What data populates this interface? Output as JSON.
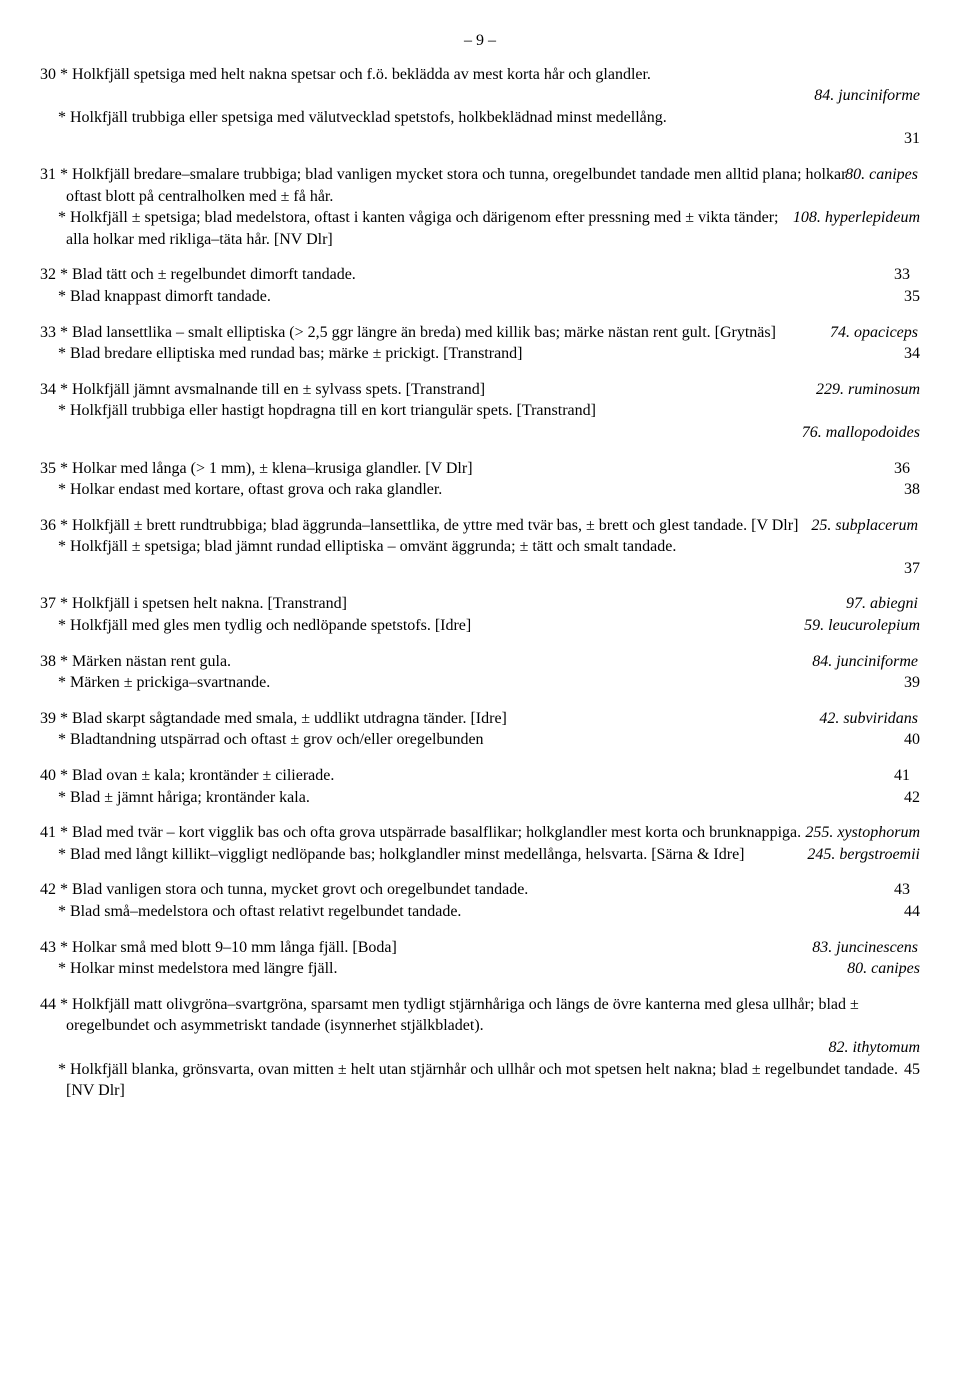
{
  "page_number": "– 9 –",
  "entries": [
    {
      "leads": [
        {
          "num": "30",
          "text": "* Holkfjäll spetsiga med helt nakna spetsar och f.ö. beklädda av mest korta hår och glandler.",
          "result": "",
          "result_italic": ""
        },
        {
          "num": "",
          "text": "",
          "result": "84",
          "result_italic": ". junciniforme"
        },
        {
          "num": "",
          "text": "* Holkfjäll trubbiga eller spetsiga med välutvecklad spetstofs, holkbeklädnad minst medellång.",
          "result": "",
          "result_italic": ""
        },
        {
          "num": "",
          "text": "",
          "result": "31",
          "result_italic": ""
        }
      ]
    },
    {
      "leads": [
        {
          "num": "31",
          "text": "* Holkfjäll bredare–smalare trubbiga; blad vanligen mycket stora och tunna, oregelbundet tandade men alltid plana; holkar oftast blott på centralholken med ± få hår.",
          "result": "80",
          "result_italic": ". canipes"
        },
        {
          "num": "",
          "text": "* Holkfjäll ± spetsiga; blad medelstora, oftast i kanten vågiga och därigenom efter pressning med ± vikta tänder; alla holkar med rikliga–täta hår. [NV Dlr]",
          "result": "108",
          "result_italic": ". hyperlepideum"
        }
      ]
    },
    {
      "leads": [
        {
          "num": "32",
          "text": "* Blad tätt och ± regelbundet dimorft tandade.",
          "result": "33",
          "result_italic": ""
        },
        {
          "num": "",
          "text": "* Blad knappast dimorft tandade.",
          "result": "35",
          "result_italic": ""
        }
      ]
    },
    {
      "leads": [
        {
          "num": "33",
          "text": "* Blad lansettlika – smalt elliptiska (> 2,5 ggr längre än breda) med killik bas; märke nästan rent gult. [Grytnäs]",
          "result": "74",
          "result_italic": ". opaciceps"
        },
        {
          "num": "",
          "text": "* Blad bredare elliptiska med rundad bas; märke ± prickigt. [Transtrand]",
          "result": "34",
          "result_italic": ""
        }
      ]
    },
    {
      "leads": [
        {
          "num": "34",
          "text": "* Holkfjäll jämnt avsmalnande till en ± sylvass spets. [Transtrand]",
          "result": "229",
          "result_italic": ". ruminosum"
        },
        {
          "num": "",
          "text": "* Holkfjäll trubbiga eller hastigt hopdragna till en kort triangulär spets. [Transtrand]",
          "result": "",
          "result_italic": ""
        },
        {
          "num": "",
          "text": "",
          "result": "76",
          "result_italic": ". mallopodoides"
        }
      ]
    },
    {
      "leads": [
        {
          "num": "35",
          "text": "* Holkar med långa (> 1 mm), ± klena–krusiga glandler. [V Dlr]",
          "result": "36",
          "result_italic": ""
        },
        {
          "num": "",
          "text": "* Holkar endast med kortare, oftast grova och raka glandler.",
          "result": "38",
          "result_italic": ""
        }
      ]
    },
    {
      "leads": [
        {
          "num": "36",
          "text": "* Holkfjäll ± brett rundtrubbiga; blad äggrunda–lansettlika, de yttre med tvär bas, ± brett och glest tandade. [V Dlr]",
          "result": "25",
          "result_italic": ". subplacerum"
        },
        {
          "num": "",
          "text": "* Holkfjäll ± spetsiga; blad jämnt rundad elliptiska – omvänt äggrunda; ± tätt och smalt tandade.",
          "result": "",
          "result_italic": ""
        },
        {
          "num": "",
          "text": "",
          "result": "37",
          "result_italic": ""
        }
      ]
    },
    {
      "leads": [
        {
          "num": "37",
          "text": "* Holkfjäll i spetsen helt nakna. [Transtrand]",
          "result": "97",
          "result_italic": ". abiegni"
        },
        {
          "num": "",
          "text": "* Holkfjäll med gles men tydlig och nedlöpande spetstofs. [Idre]",
          "result": "59",
          "result_italic": ". leucurolepium"
        }
      ]
    },
    {
      "leads": [
        {
          "num": "38",
          "text": "* Märken nästan rent gula.",
          "result": "84",
          "result_italic": ". junciniforme"
        },
        {
          "num": "",
          "text": "* Märken ± prickiga–svartnande.",
          "result": "39",
          "result_italic": ""
        }
      ]
    },
    {
      "leads": [
        {
          "num": "39",
          "text": "* Blad skarpt sågtandade med smala, ± uddlikt utdragna tänder. [Idre]",
          "result": "42",
          "result_italic": ". subviridans"
        },
        {
          "num": "",
          "text": "* Bladtandning utspärrad och oftast ± grov och/eller oregelbunden",
          "result": "40",
          "result_italic": ""
        }
      ]
    },
    {
      "leads": [
        {
          "num": "40",
          "text": "* Blad ovan ± kala; krontänder ± cilierade.",
          "result": "41",
          "result_italic": ""
        },
        {
          "num": "",
          "text": "* Blad ± jämnt håriga; krontänder kala.",
          "result": "42",
          "result_italic": ""
        }
      ]
    },
    {
      "leads": [
        {
          "num": "41",
          "text": "* Blad med tvär – kort vigglik bas och ofta grova utspärrade basalflikar; holkglandler mest korta och brunknappiga.",
          "result": "255",
          "result_italic": ". xystophorum"
        },
        {
          "num": "",
          "text": "* Blad med långt killikt–viggligt nedlöpande bas; holkglandler minst medellånga, helsvarta. [Särna & Idre]",
          "result": "245",
          "result_italic": ". bergstroemii"
        }
      ]
    },
    {
      "leads": [
        {
          "num": "42",
          "text": "* Blad vanligen stora och tunna, mycket grovt och oregelbundet tandade.",
          "result": "43",
          "result_italic": ""
        },
        {
          "num": "",
          "text": "* Blad små–medelstora och oftast relativt regelbundet tandade.",
          "result": "44",
          "result_italic": ""
        }
      ]
    },
    {
      "leads": [
        {
          "num": "43",
          "text": "* Holkar små med blott 9–10 mm långa fjäll. [Boda]",
          "result": "83",
          "result_italic": ". juncinescens"
        },
        {
          "num": "",
          "text": "* Holkar minst medelstora med längre fjäll.",
          "result": "80",
          "result_italic": ". canipes"
        }
      ]
    },
    {
      "leads": [
        {
          "num": "44",
          "text": "* Holkfjäll matt olivgröna–svartgröna, sparsamt men tydligt stjärnhåriga och längs de övre kanterna med glesa ullhår; blad ± oregelbundet och asymmetriskt tandade (isynnerhet stjälkbladet).",
          "result": "",
          "result_italic": ""
        },
        {
          "num": "",
          "text": "",
          "result": "82",
          "result_italic": ". ithytomum"
        },
        {
          "num": "",
          "text": "* Holkfjäll blanka, grönsvarta, ovan mitten ± helt utan stjärnhår och ullhår och mot spetsen helt nakna; blad ± regelbundet tandade. [NV Dlr]",
          "result": "45",
          "result_italic": ""
        }
      ]
    }
  ]
}
